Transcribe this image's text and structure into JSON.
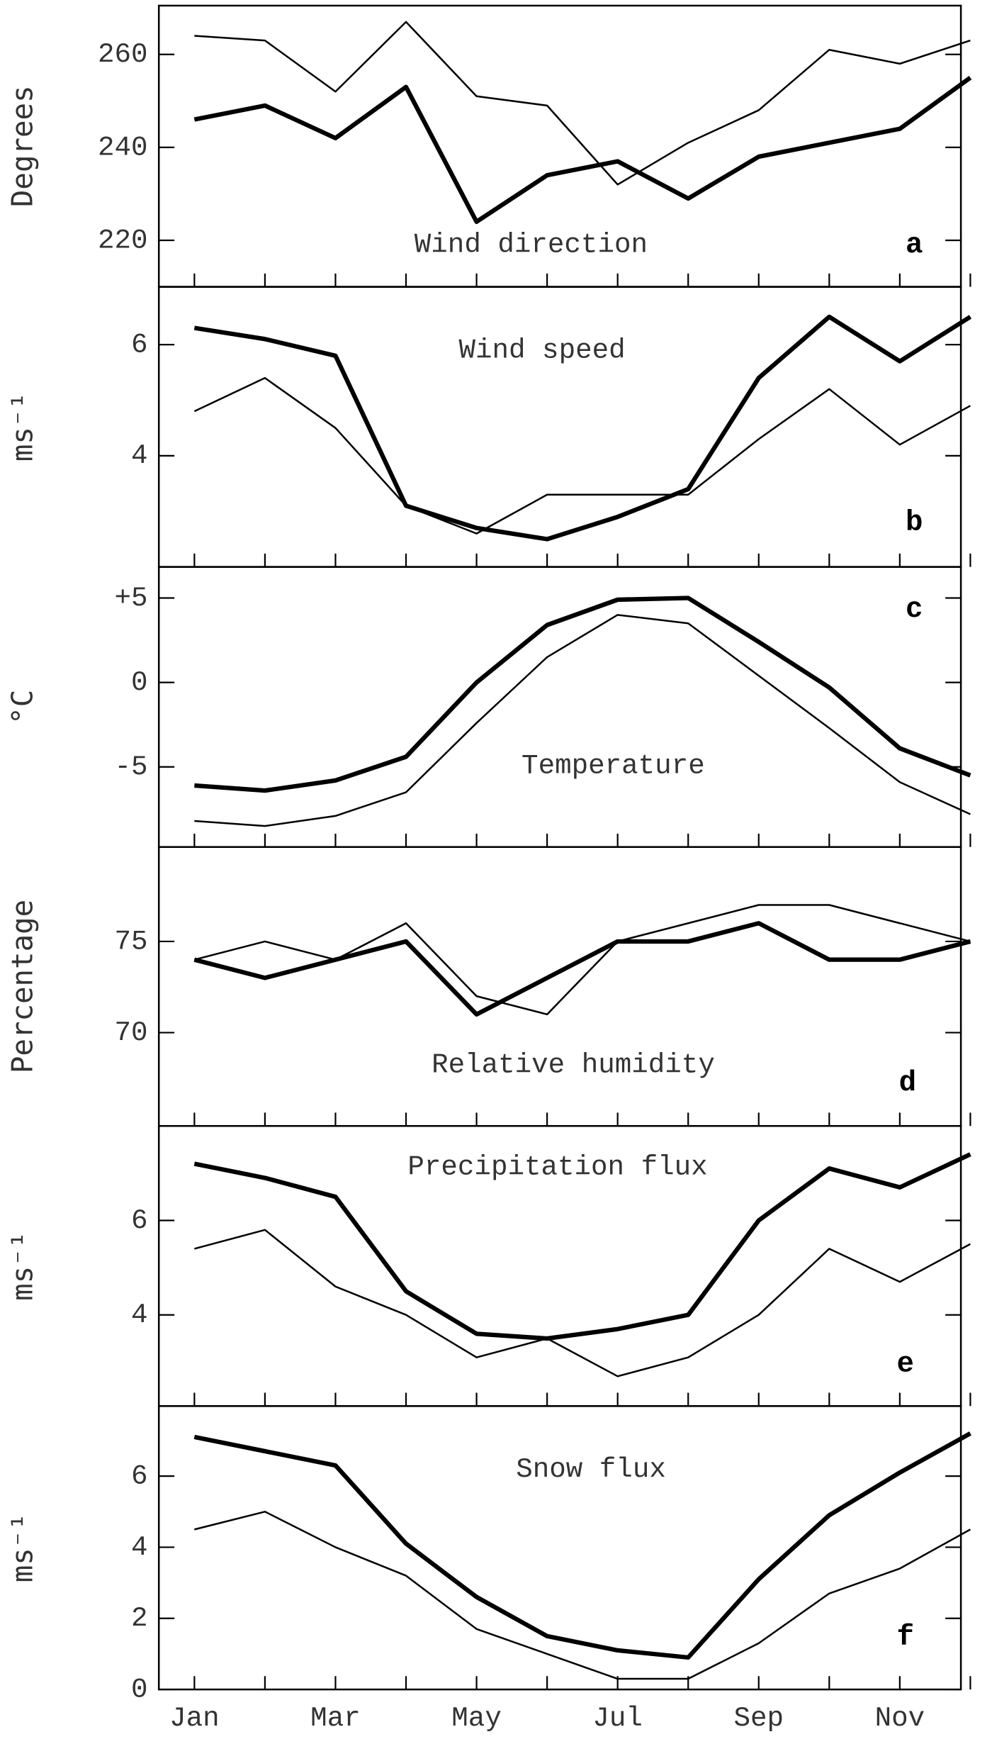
{
  "chart_data": [
    {
      "type": "line",
      "title": "Wind direction",
      "ylabel": "Degrees",
      "panel_label": "a",
      "ylim": [
        210,
        270.5
      ],
      "yticks": [
        220,
        240,
        260
      ],
      "series": [
        {
          "color": "#000000",
          "values": [
            246,
            249,
            242,
            253,
            224,
            234,
            237,
            229,
            238,
            241,
            244,
            255
          ]
        },
        {
          "color": "#000000",
          "values": [
            264,
            263,
            252,
            267,
            251,
            249,
            232,
            241,
            248,
            261,
            258,
            263
          ]
        }
      ]
    },
    {
      "type": "line",
      "title": "Wind speed",
      "ylabel": "ms⁻¹",
      "panel_label": "b",
      "ylim": [
        2,
        7.04
      ],
      "yticks": [
        4,
        6
      ],
      "series": [
        {
          "color": "#000000",
          "values": [
            6.3,
            6.1,
            5.8,
            3.1,
            2.7,
            2.5,
            2.9,
            3.4,
            5.4,
            6.5,
            5.7,
            6.5
          ]
        },
        {
          "color": "#000000",
          "values": [
            4.8,
            5.4,
            4.5,
            3.1,
            2.6,
            3.3,
            3.3,
            3.3,
            4.3,
            5.2,
            4.2,
            4.9
          ]
        }
      ]
    },
    {
      "type": "line",
      "title": "Temperature",
      "ylabel": "°C",
      "panel_label": "c",
      "ylim": [
        -9.74,
        6.84
      ],
      "yticks": [
        {
          "value": 5,
          "label": "+5"
        },
        0,
        -5
      ],
      "series": [
        {
          "color": "#000000",
          "values": [
            -6.1,
            -6.4,
            -5.8,
            -4.4,
            0,
            3.4,
            4.9,
            5.0,
            2.4,
            -0.3,
            -3.9,
            -5.5
          ]
        },
        {
          "color": "#000000",
          "values": [
            -8.2,
            -8.5,
            -7.9,
            -6.5,
            -2.4,
            1.5,
            4.0,
            3.5,
            0.4,
            -2.7,
            -5.9,
            -7.8
          ]
        }
      ]
    },
    {
      "type": "line",
      "title": "Relative humidity",
      "ylabel": "Percentage",
      "panel_label": "d",
      "ylim": [
        64.88,
        80.18
      ],
      "yticks": [
        70,
        75
      ],
      "series": [
        {
          "color": "#000000",
          "values": [
            74,
            73,
            74,
            75,
            71,
            73,
            75,
            75,
            76,
            74,
            74,
            75
          ]
        },
        {
          "color": "#000000",
          "values": [
            74,
            75,
            74,
            76,
            72,
            71,
            75,
            76,
            77,
            77,
            76,
            75
          ]
        }
      ]
    },
    {
      "type": "line",
      "title": "Precipitation flux",
      "ylabel": "ms⁻¹",
      "panel_label": "e",
      "ylim": [
        2.07,
        8
      ],
      "yticks": [
        4,
        6
      ],
      "series": [
        {
          "color": "#000000",
          "values": [
            7.2,
            6.9,
            6.5,
            4.5,
            3.6,
            3.5,
            3.7,
            4.0,
            6.0,
            7.1,
            6.7,
            7.4
          ]
        },
        {
          "color": "#000000",
          "values": [
            5.4,
            5.8,
            4.6,
            4.0,
            3.1,
            3.5,
            2.7,
            3.1,
            4.0,
            5.4,
            4.7,
            5.5
          ]
        }
      ]
    },
    {
      "type": "line",
      "title": "Snow flux",
      "ylabel": "ms⁻¹",
      "panel_label": "f",
      "categories": [
        "Jan",
        null,
        "Mar",
        null,
        "May",
        null,
        "Jul",
        null,
        "Sep",
        null,
        "Nov",
        null
      ],
      "ylim": [
        0,
        7.97
      ],
      "yticks": [
        0,
        2,
        4,
        6
      ],
      "series": [
        {
          "color": "#000000",
          "values": [
            7.1,
            6.7,
            6.3,
            4.1,
            2.6,
            1.5,
            1.1,
            0.9,
            3.1,
            4.9,
            6.1,
            7.2
          ]
        },
        {
          "color": "#000000",
          "values": [
            4.5,
            5.0,
            4.0,
            3.2,
            1.7,
            1.0,
            0.3,
            0.3,
            1.3,
            2.7,
            3.4,
            4.5
          ]
        }
      ]
    }
  ]
}
